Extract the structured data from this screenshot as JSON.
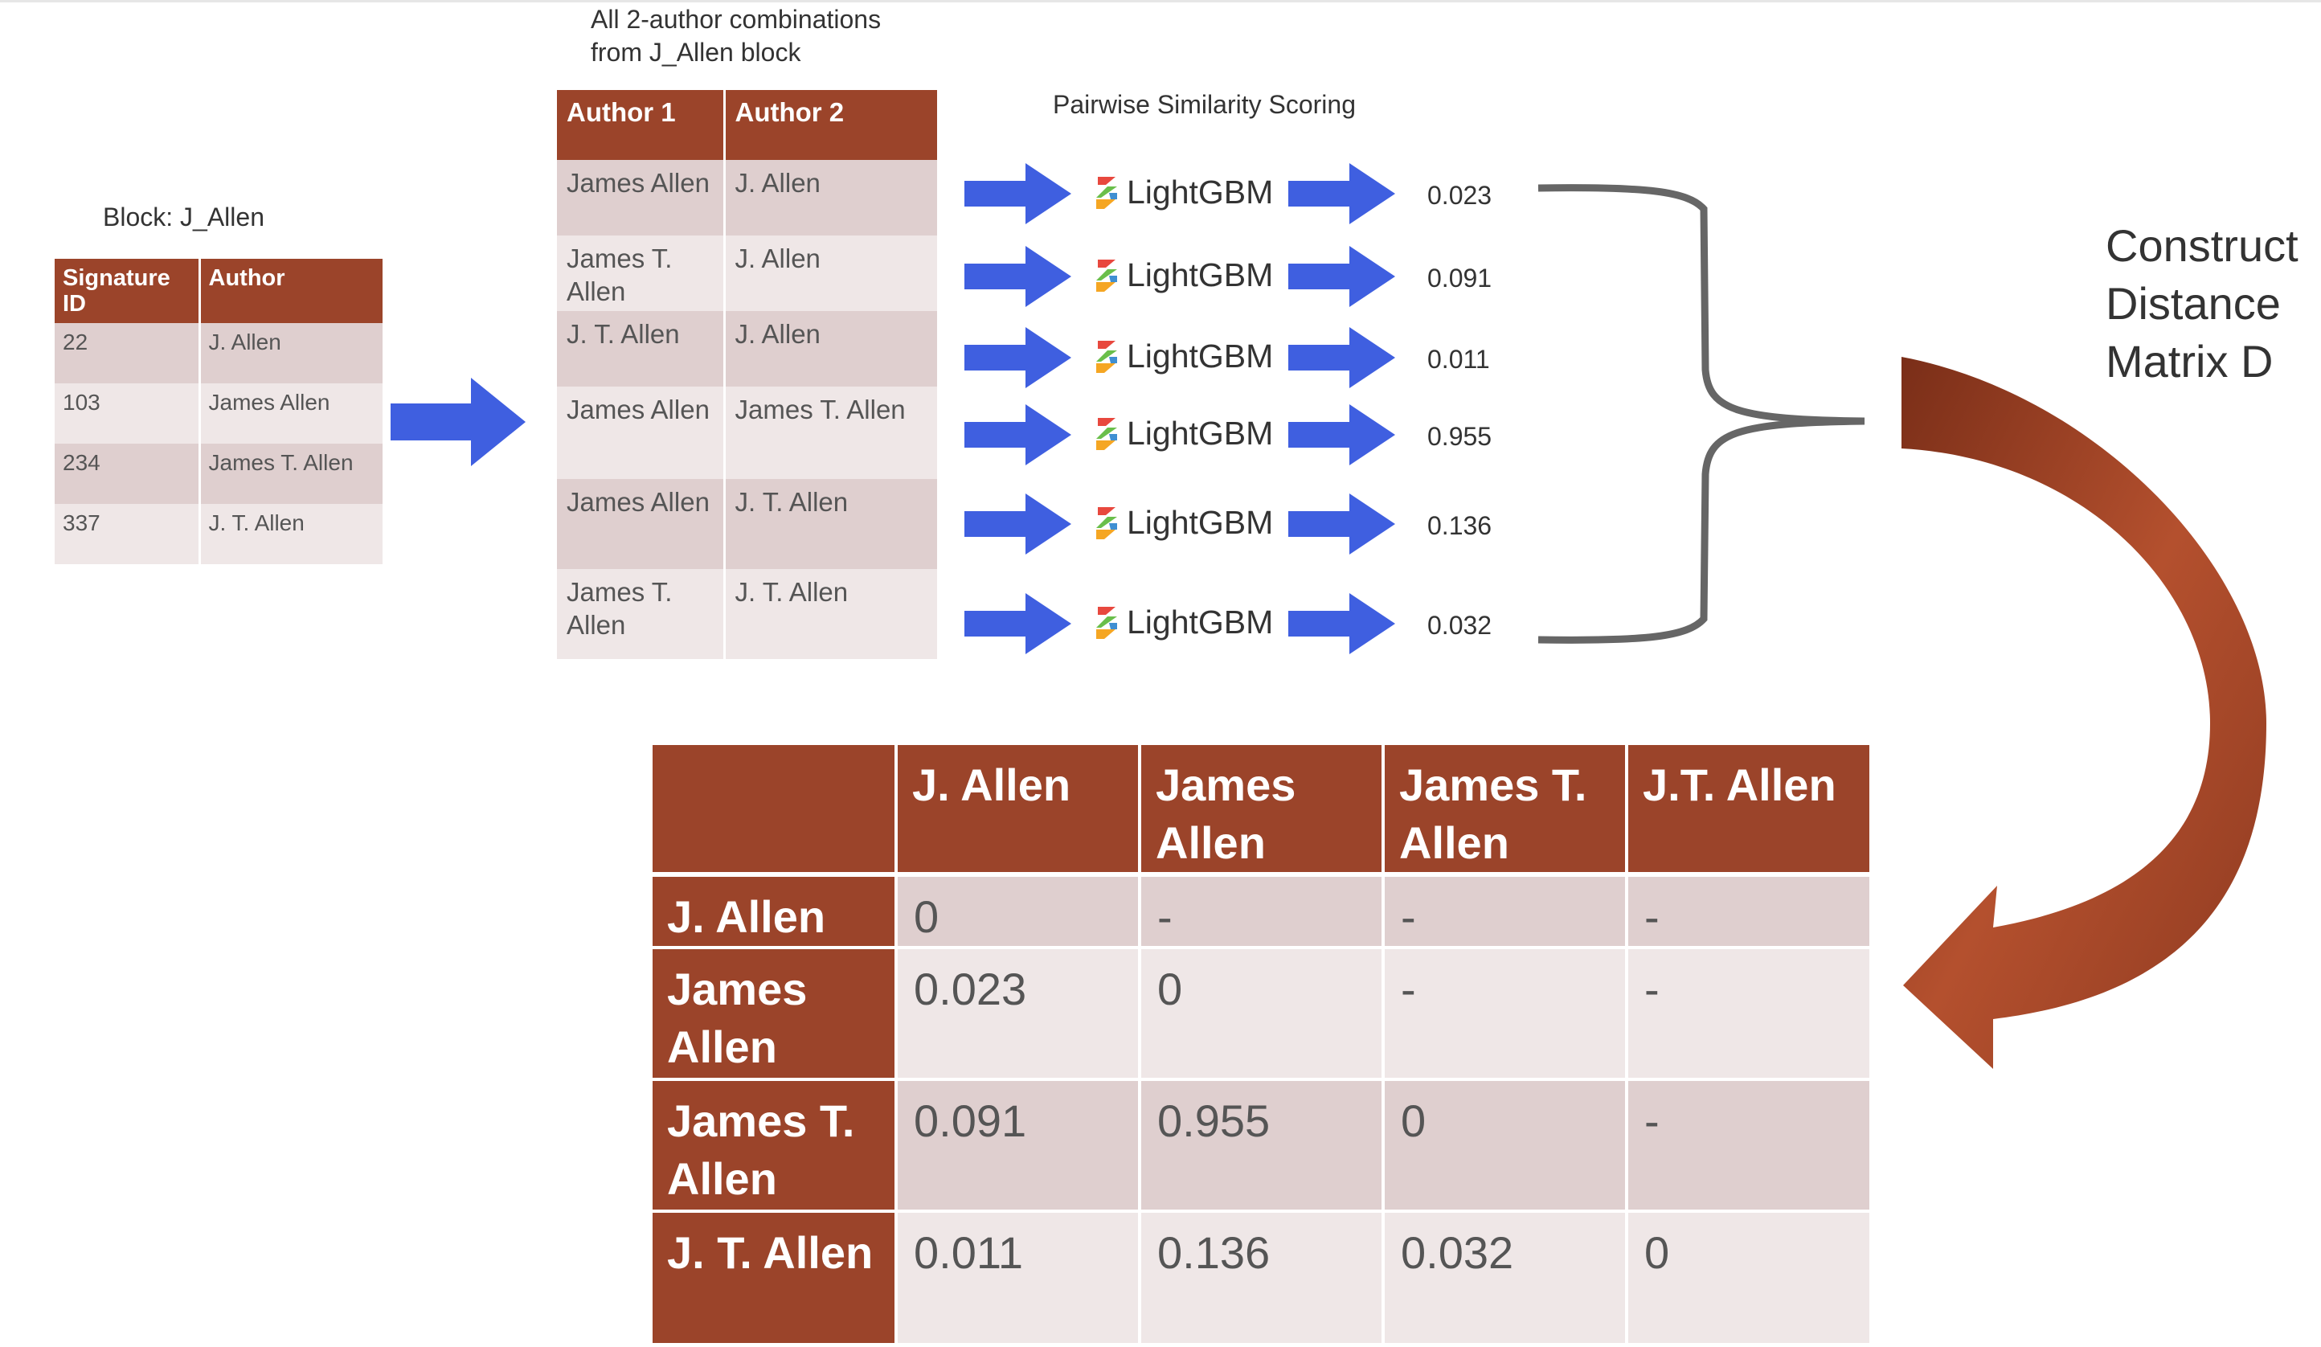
{
  "block": {
    "label": "Block: J_Allen",
    "headers": [
      "Signature ID",
      "Author"
    ],
    "rows": [
      [
        "22",
        "J. Allen"
      ],
      [
        "103",
        "James Allen"
      ],
      [
        "234",
        "James T. Allen"
      ],
      [
        "337",
        "J. T. Allen"
      ]
    ]
  },
  "pairs": {
    "caption_line1": "All 2-author combinations",
    "caption_line2": "from J_Allen block",
    "headers": [
      "Author 1",
      "Author 2"
    ],
    "rows": [
      [
        "James Allen",
        "J. Allen"
      ],
      [
        "James T. Allen",
        "J. Allen"
      ],
      [
        "J. T. Allen",
        "J. Allen"
      ],
      [
        "James Allen",
        "James T. Allen"
      ],
      [
        "James Allen",
        "J. T. Allen"
      ],
      [
        "James T. Allen",
        "J. T. Allen"
      ]
    ]
  },
  "scoring": {
    "title": "Pairwise Similarity Scoring",
    "model_label": "LightGBM",
    "scores": [
      "0.023",
      "0.091",
      "0.011",
      "0.955",
      "0.136",
      "0.032"
    ]
  },
  "construct": {
    "line1": "Construct",
    "line2": "Distance",
    "line3": "Matrix D"
  },
  "matrix": {
    "col_headers": [
      "",
      "J. Allen",
      "James Allen",
      "James T. Allen",
      "J.T. Allen"
    ],
    "rows": [
      {
        "label": "J. Allen",
        "cells": [
          "0",
          "-",
          "-",
          "-"
        ]
      },
      {
        "label": "James Allen",
        "cells": [
          "0.023",
          "0",
          "-",
          "-"
        ]
      },
      {
        "label": "James T. Allen",
        "cells": [
          "0.091",
          "0.955",
          "0",
          "-"
        ]
      },
      {
        "label": "J. T. Allen",
        "cells": [
          "0.011",
          "0.136",
          "0.032",
          "0"
        ]
      }
    ]
  },
  "colors": {
    "header": "#9b442a",
    "row_dark": "#dfcfcf",
    "row_light": "#efe7e7",
    "arrow_blue": "#3f5fe0",
    "curve_arrow": "#963c20"
  }
}
